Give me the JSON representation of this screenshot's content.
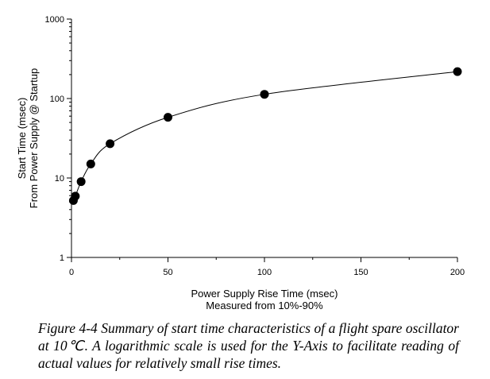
{
  "chart_data": {
    "type": "line",
    "title": "",
    "xlabel": "Power Supply Rise Time (msec)",
    "xlabel2": "Measured from 10%-90%",
    "ylabel": "Start Time (msec)",
    "ylabel2": "From Power Supply @ Startup",
    "xlim": [
      0,
      200
    ],
    "ylim": [
      1,
      1000
    ],
    "yscale": "log",
    "grid": false,
    "xticks": [
      0,
      50,
      100,
      150,
      200
    ],
    "yticks": [
      1,
      10,
      100,
      1000
    ],
    "x": [
      1,
      2,
      5,
      10,
      20,
      50,
      100,
      200
    ],
    "y": [
      5.2,
      5.9,
      9,
      15,
      27,
      58,
      113,
      218
    ],
    "marker": "filled-circle",
    "color": "#000000"
  },
  "caption": "Figure 4-4 Summary of start time characteristics of a flight spare oscillator at 10℃.  A logarithmic scale is used for the Y-Axis to facilitate reading of actual values for relatively small rise times."
}
